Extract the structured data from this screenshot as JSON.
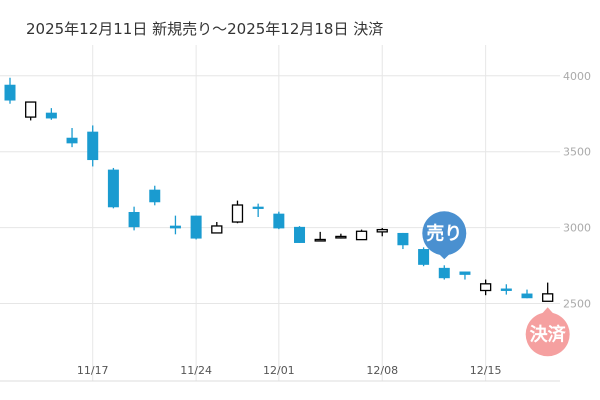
{
  "chart_data": {
    "type": "candlestick",
    "title": "2025年12月11日 新規売り〜2025年12月18日 決済",
    "ylim": [
      1990,
      4150
    ],
    "yticks": [
      2500,
      3000,
      3500,
      4000
    ],
    "xticks": [
      {
        "index": 4,
        "label": "11/17"
      },
      {
        "index": 9,
        "label": "11/24"
      },
      {
        "index": 13,
        "label": "12/01"
      },
      {
        "index": 18,
        "label": "12/08"
      },
      {
        "index": 23,
        "label": "12/15"
      }
    ],
    "grid": true,
    "colors": {
      "down": "#1a9bd0",
      "up": "#000000",
      "sell": "#4a90d0",
      "settle": "#f5a0a0"
    },
    "candles": [
      {
        "o": 3941,
        "h": 3987,
        "l": 3816,
        "c": 3837
      },
      {
        "o": 3728,
        "h": 3827,
        "l": 3706,
        "c": 3827
      },
      {
        "o": 3757,
        "h": 3787,
        "l": 3710,
        "c": 3719
      },
      {
        "o": 3592,
        "h": 3656,
        "l": 3530,
        "c": 3555
      },
      {
        "o": 3632,
        "h": 3673,
        "l": 3403,
        "c": 3445
      },
      {
        "o": 3382,
        "h": 3393,
        "l": 3127,
        "c": 3134
      },
      {
        "o": 3103,
        "h": 3138,
        "l": 2982,
        "c": 3003
      },
      {
        "o": 3250,
        "h": 3276,
        "l": 3147,
        "c": 3167
      },
      {
        "o": 3013,
        "h": 3079,
        "l": 2956,
        "c": 2995
      },
      {
        "o": 3079,
        "h": 3079,
        "l": 2922,
        "c": 2928
      },
      {
        "o": 2965,
        "h": 3037,
        "l": 2965,
        "c": 3011
      },
      {
        "o": 3037,
        "h": 3178,
        "l": 3029,
        "c": 3149
      },
      {
        "o": 3138,
        "h": 3158,
        "l": 3070,
        "c": 3123
      },
      {
        "o": 3092,
        "h": 3105,
        "l": 2990,
        "c": 2995
      },
      {
        "o": 3005,
        "h": 3010,
        "l": 2899,
        "c": 2899
      },
      {
        "o": 2921,
        "h": 2972,
        "l": 2921,
        "c": 2922
      },
      {
        "o": 2941,
        "h": 2960,
        "l": 2928,
        "c": 2942
      },
      {
        "o": 2921,
        "h": 2987,
        "l": 2921,
        "c": 2976
      },
      {
        "o": 2972,
        "h": 2998,
        "l": 2943,
        "c": 2987
      },
      {
        "o": 2965,
        "h": 2965,
        "l": 2859,
        "c": 2884
      },
      {
        "o": 2859,
        "h": 2870,
        "l": 2746,
        "c": 2755
      },
      {
        "o": 2735,
        "h": 2752,
        "l": 2658,
        "c": 2667
      },
      {
        "o": 2711,
        "h": 2711,
        "l": 2658,
        "c": 2689
      },
      {
        "o": 2586,
        "h": 2658,
        "l": 2555,
        "c": 2630
      },
      {
        "o": 2599,
        "h": 2627,
        "l": 2559,
        "c": 2583
      },
      {
        "o": 2566,
        "h": 2592,
        "l": 2535,
        "c": 2535
      },
      {
        "o": 2515,
        "h": 2638,
        "l": 2515,
        "c": 2564
      }
    ],
    "markers": [
      {
        "index": 21,
        "label": "売り",
        "type": "sell"
      },
      {
        "index": 26,
        "label": "決済",
        "type": "settle"
      }
    ]
  }
}
